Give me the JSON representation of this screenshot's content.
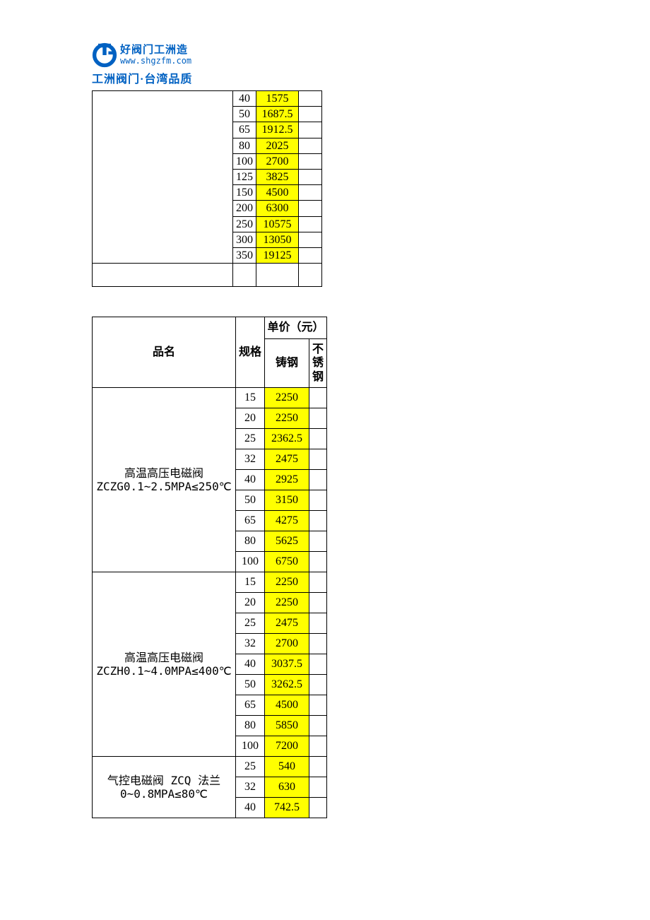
{
  "logo": {
    "slogan": "好阀门工洲造",
    "url": "www.shgzfm.com",
    "subline": "工洲阀门·台湾品质",
    "brand_color": "#0061c2"
  },
  "colors": {
    "highlight_bg": "#ffff00",
    "border": "#000000",
    "page_bg": "#ffffff"
  },
  "table1": {
    "rows": [
      {
        "spec": "40",
        "price": "1575"
      },
      {
        "spec": "50",
        "price": "1687.5"
      },
      {
        "spec": "65",
        "price": "1912.5"
      },
      {
        "spec": "80",
        "price": "2025"
      },
      {
        "spec": "100",
        "price": "2700"
      },
      {
        "spec": "125",
        "price": "3825"
      },
      {
        "spec": "150",
        "price": "4500"
      },
      {
        "spec": "200",
        "price": "6300"
      },
      {
        "spec": "250",
        "price": "10575"
      },
      {
        "spec": "300",
        "price": "13050"
      },
      {
        "spec": "350",
        "price": "19125"
      }
    ]
  },
  "table2": {
    "header": {
      "name": "品名",
      "spec": "规格",
      "price": "单价（元）",
      "price_cast": "铸钢",
      "price_ss": "不锈钢"
    },
    "groups": [
      {
        "name": "高温高压电磁阀\nZCZG0.1~2.5MPA≤250℃",
        "rows": [
          {
            "spec": "15",
            "price": "2250"
          },
          {
            "spec": "20",
            "price": "2250"
          },
          {
            "spec": "25",
            "price": "2362.5"
          },
          {
            "spec": "32",
            "price": "2475"
          },
          {
            "spec": "40",
            "price": "2925"
          },
          {
            "spec": "50",
            "price": "3150"
          },
          {
            "spec": "65",
            "price": "4275"
          },
          {
            "spec": "80",
            "price": "5625"
          },
          {
            "spec": "100",
            "price": "6750"
          }
        ]
      },
      {
        "name": "高温高压电磁阀\nZCZH0.1~4.0MPA≤400℃",
        "rows": [
          {
            "spec": "15",
            "price": "2250"
          },
          {
            "spec": "20",
            "price": "2250"
          },
          {
            "spec": "25",
            "price": "2475"
          },
          {
            "spec": "32",
            "price": "2700"
          },
          {
            "spec": "40",
            "price": "3037.5"
          },
          {
            "spec": "50",
            "price": "3262.5"
          },
          {
            "spec": "65",
            "price": "4500"
          },
          {
            "spec": "80",
            "price": "5850"
          },
          {
            "spec": "100",
            "price": "7200"
          }
        ]
      },
      {
        "name": "气控电磁阀 ZCQ 法兰\n0~0.8MPA≤80℃",
        "rows": [
          {
            "spec": "25",
            "price": "540"
          },
          {
            "spec": "32",
            "price": "630"
          },
          {
            "spec": "40",
            "price": "742.5"
          }
        ]
      }
    ]
  }
}
